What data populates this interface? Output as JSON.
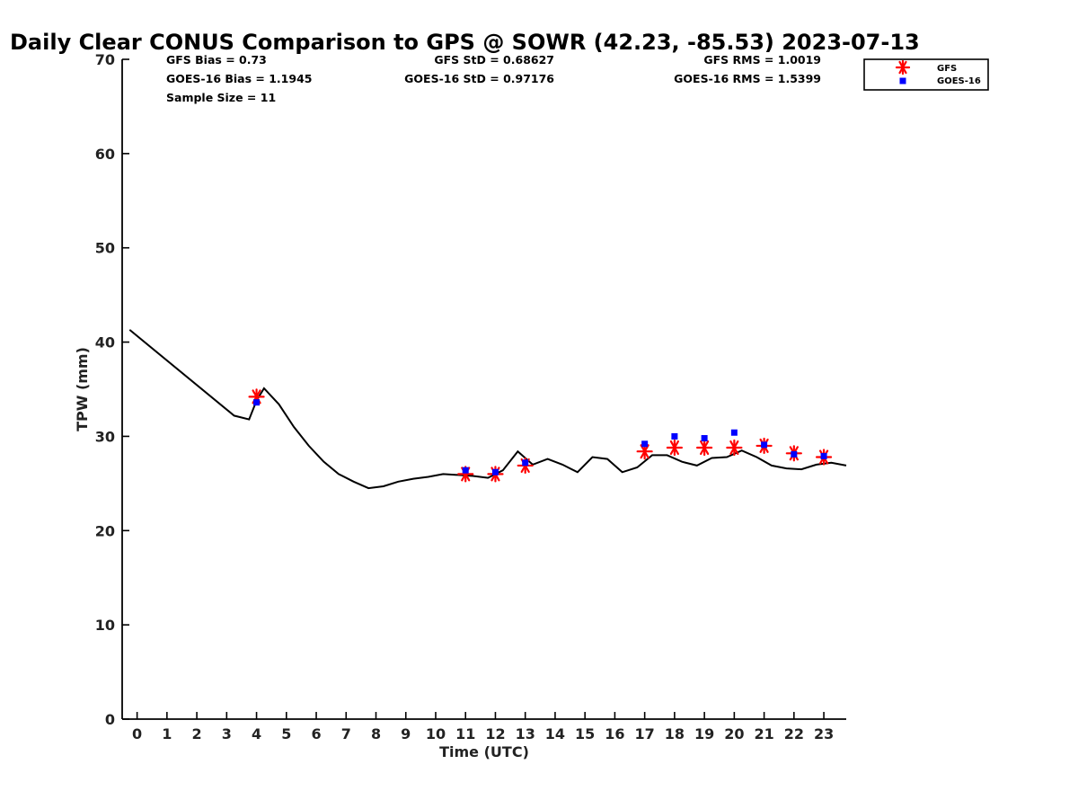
{
  "chart_data": {
    "type": "line",
    "title": "Daily Clear CONUS Comparison to GPS @ SOWR (42.23, -85.53) 2023-07-13",
    "xlabel": "Time (UTC)",
    "ylabel": "TPW (mm)",
    "xlim": [
      -0.5,
      23.75
    ],
    "ylim": [
      0,
      70
    ],
    "x_ticks": [
      0,
      1,
      2,
      3,
      4,
      5,
      6,
      7,
      8,
      9,
      10,
      11,
      12,
      13,
      14,
      15,
      16,
      17,
      18,
      19,
      20,
      21,
      22,
      23
    ],
    "y_ticks": [
      0,
      10,
      20,
      30,
      40,
      50,
      60,
      70
    ],
    "stats": {
      "gfs_bias": "GFS Bias = 0.73",
      "goes_bias": "GOES-16 Bias = 1.1945",
      "sample_size": "Sample Size = 11",
      "gfs_std": "GFS StD = 0.68627",
      "goes_std": "GOES-16 StD = 0.97176",
      "gfs_rms": "GFS RMS = 1.0019",
      "goes_rms": "GOES-16 RMS = 1.5399"
    },
    "legend": {
      "position": "top-right",
      "entries": [
        "GFS",
        "GOES-16"
      ]
    },
    "series": [
      {
        "kind": "line",
        "color": "#000000",
        "x": [
          -0.25,
          3.25,
          3.75,
          4.0,
          4.25,
          4.75,
          5.25,
          5.75,
          6.25,
          6.75,
          7.25,
          7.75,
          8.25,
          8.75,
          9.25,
          9.75,
          10.25,
          10.75,
          11.25,
          11.75,
          12.25,
          12.75,
          13.25,
          13.75,
          14.25,
          14.75,
          15.25,
          15.75,
          16.25,
          16.75,
          17.25,
          17.75,
          18.25,
          18.75,
          19.25,
          19.75,
          20.25,
          20.75,
          21.25,
          21.75,
          22.25,
          22.75,
          23.25,
          23.75
        ],
        "y": [
          41.3,
          32.2,
          31.8,
          33.8,
          35.1,
          33.4,
          31.0,
          29.0,
          27.3,
          26.0,
          25.2,
          24.5,
          24.7,
          25.2,
          25.5,
          25.7,
          26.0,
          25.9,
          25.8,
          25.6,
          26.4,
          28.4,
          27.0,
          27.6,
          27.0,
          26.2,
          27.8,
          27.6,
          26.2,
          26.7,
          28.0,
          28.0,
          27.3,
          26.9,
          27.7,
          27.8,
          28.5,
          27.8,
          26.9,
          26.6,
          26.5,
          27.0,
          27.2,
          26.9
        ]
      },
      {
        "name": "GFS",
        "kind": "marker",
        "marker": "asterisk",
        "color": "#ff0000",
        "x": [
          4,
          11,
          12,
          13,
          17,
          18,
          19,
          20,
          21,
          22,
          23
        ],
        "y": [
          34.2,
          26.0,
          26.0,
          26.9,
          28.4,
          28.8,
          28.8,
          28.8,
          29.0,
          28.2,
          27.8
        ]
      },
      {
        "name": "GOES-16",
        "kind": "marker",
        "marker": "square",
        "color": "#0000ff",
        "x": [
          4,
          11,
          12,
          13,
          17,
          18,
          19,
          20,
          21,
          22,
          23
        ],
        "y": [
          33.6,
          26.4,
          26.2,
          27.2,
          29.2,
          30.0,
          29.8,
          30.4,
          29.1,
          28.1,
          27.9
        ]
      }
    ]
  }
}
